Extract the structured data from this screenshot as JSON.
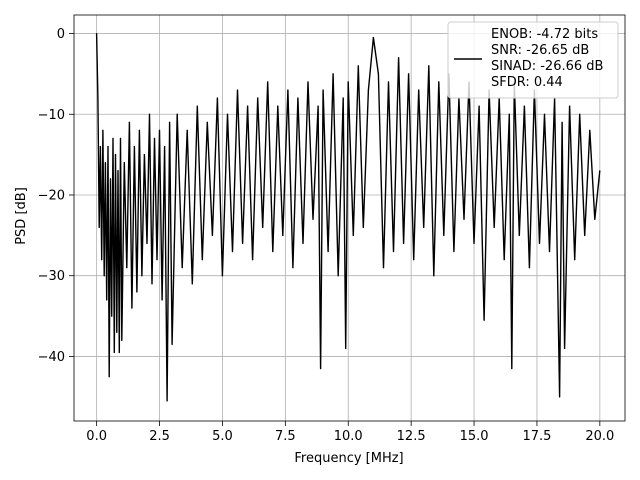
{
  "chart_data": {
    "type": "line",
    "title": "",
    "xlabel": "Frequency [MHz]",
    "ylabel": "PSD [dB]",
    "xlim": [
      -0.9,
      21.0
    ],
    "ylim": [
      -48.0,
      2.3
    ],
    "xticks": [
      0.0,
      2.5,
      5.0,
      7.5,
      10.0,
      12.5,
      15.0,
      17.5,
      20.0
    ],
    "xtick_labels": [
      "0.0",
      "2.5",
      "5.0",
      "7.5",
      "10.0",
      "12.5",
      "15.0",
      "17.5",
      "20.0"
    ],
    "yticks": [
      0,
      -10,
      -20,
      -30,
      -40
    ],
    "ytick_labels": [
      "0",
      "−10",
      "−20",
      "−30",
      "−40"
    ],
    "grid": true,
    "legend_position": "top-right",
    "legend_lines": [
      "ENOB: -4.72 bits",
      "SNR: -26.65 dB",
      "SINAD: -26.66 dB",
      "SFDR: 0.44"
    ],
    "line_color": "#000000",
    "series": [
      {
        "x": [
          0.0,
          0.05,
          0.1,
          0.15,
          0.2,
          0.25,
          0.3,
          0.35,
          0.4,
          0.45,
          0.5,
          0.55,
          0.6,
          0.65,
          0.7,
          0.75,
          0.8,
          0.85,
          0.9,
          0.95,
          1.0,
          1.1,
          1.2,
          1.3,
          1.4,
          1.5,
          1.6,
          1.7,
          1.8,
          1.9,
          2.0,
          2.1,
          2.2,
          2.3,
          2.4,
          2.5,
          2.6,
          2.7,
          2.8,
          2.9,
          3.0,
          3.2,
          3.4,
          3.6,
          3.8,
          4.0,
          4.2,
          4.4,
          4.6,
          4.8,
          5.0,
          5.2,
          5.4,
          5.6,
          5.8,
          6.0,
          6.2,
          6.4,
          6.6,
          6.8,
          7.0,
          7.2,
          7.4,
          7.6,
          7.8,
          8.0,
          8.2,
          8.4,
          8.6,
          8.8,
          8.9,
          9.0,
          9.2,
          9.4,
          9.6,
          9.8,
          9.9,
          10.0,
          10.2,
          10.4,
          10.6,
          10.8,
          11.0,
          11.2,
          11.4,
          11.6,
          11.8,
          12.0,
          12.2,
          12.4,
          12.6,
          12.8,
          13.0,
          13.2,
          13.4,
          13.6,
          13.8,
          14.0,
          14.2,
          14.4,
          14.6,
          14.8,
          15.0,
          15.2,
          15.4,
          15.6,
          15.8,
          16.0,
          16.2,
          16.4,
          16.5,
          16.6,
          16.8,
          17.0,
          17.2,
          17.4,
          17.6,
          17.8,
          18.0,
          18.2,
          18.4,
          18.5,
          18.6,
          18.8,
          19.0,
          19.2,
          19.4,
          19.6,
          19.8,
          20.0
        ],
        "y": [
          0.0,
          -8.0,
          -24.0,
          -14.0,
          -28.0,
          -12.0,
          -30.0,
          -16.0,
          -33.0,
          -14.0,
          -42.5,
          -18.0,
          -35.0,
          -13.0,
          -39.5,
          -15.0,
          -37.0,
          -17.0,
          -39.5,
          -13.0,
          -38.0,
          -16.0,
          -29.0,
          -11.0,
          -34.0,
          -14.0,
          -32.0,
          -12.0,
          -30.0,
          -15.0,
          -26.0,
          -10.0,
          -31.0,
          -13.0,
          -28.0,
          -12.0,
          -33.0,
          -14.0,
          -45.5,
          -11.0,
          -38.5,
          -10.0,
          -29.0,
          -12.0,
          -31.0,
          -9.0,
          -28.0,
          -11.0,
          -25.0,
          -8.0,
          -30.0,
          -10.0,
          -27.0,
          -7.0,
          -26.0,
          -9.0,
          -28.0,
          -8.0,
          -24.0,
          -6.0,
          -27.0,
          -9.0,
          -25.0,
          -7.0,
          -29.0,
          -8.0,
          -26.0,
          -6.0,
          -23.0,
          -9.0,
          -41.5,
          -7.0,
          -27.0,
          -5.0,
          -30.0,
          -8.0,
          -39.0,
          -6.0,
          -25.0,
          -4.0,
          -24.0,
          -7.0,
          -0.5,
          -5.0,
          -29.0,
          -6.0,
          -27.0,
          -3.0,
          -26.0,
          -5.0,
          -28.0,
          -7.0,
          -24.0,
          -4.0,
          -30.0,
          -6.0,
          -25.0,
          -5.0,
          -27.0,
          -8.0,
          -23.0,
          -6.0,
          -26.0,
          -9.0,
          -35.5,
          -7.0,
          -24.0,
          -8.0,
          -28.0,
          -10.0,
          -41.5,
          -6.0,
          -25.0,
          -9.0,
          -29.0,
          -7.0,
          -26.0,
          -10.0,
          -27.0,
          -8.0,
          -45.0,
          -11.0,
          -39.0,
          -9.0,
          -28.0,
          -10.0,
          -25.0,
          -12.0,
          -23.0,
          -17.0
        ]
      }
    ]
  }
}
